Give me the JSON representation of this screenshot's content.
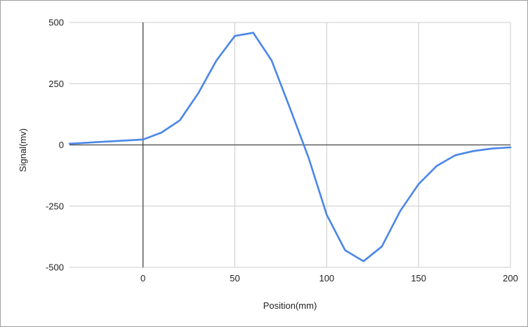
{
  "chart_data": {
    "type": "line",
    "title": "",
    "xlabel": "Position(mm)",
    "ylabel": "Signal(mv)",
    "xlim": [
      -40,
      200
    ],
    "ylim": [
      -500,
      500
    ],
    "x_ticks": [
      "0",
      "50",
      "100",
      "150",
      "200"
    ],
    "y_ticks": [
      "500",
      "250",
      "0",
      "-250",
      "-500"
    ],
    "grid": true,
    "legend": "none",
    "colors": {
      "series": "#4a86e8",
      "grid": "#cccccc",
      "axis": "#444444"
    },
    "series": [
      {
        "x": [
          -40,
          0,
          10,
          20,
          30,
          40,
          50,
          60,
          70,
          80,
          90,
          100,
          110,
          120,
          130,
          140,
          150,
          160,
          170,
          180,
          190,
          200
        ],
        "y": [
          5,
          22,
          50,
          100,
          210,
          345,
          445,
          458,
          345,
          150,
          -50,
          -285,
          -430,
          -475,
          -415,
          -270,
          -160,
          -85,
          -42,
          -25,
          -15,
          -10
        ]
      }
    ]
  }
}
